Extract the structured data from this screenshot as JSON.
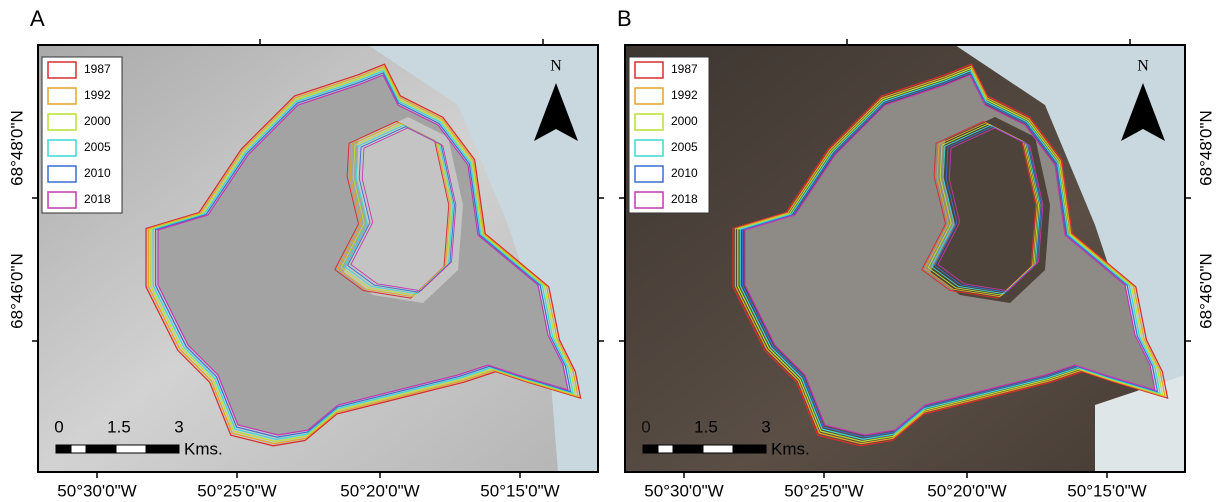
{
  "panels": [
    {
      "label": "A",
      "north": "N",
      "legend": [
        {
          "year": "1987",
          "color": "#d62f2f"
        },
        {
          "year": "1992",
          "color": "#e3a326"
        },
        {
          "year": "2000",
          "color": "#b6e034"
        },
        {
          "year": "2005",
          "color": "#3fd7d4"
        },
        {
          "year": "2010",
          "color": "#3a6fd0"
        },
        {
          "year": "2018",
          "color": "#c23aae"
        }
      ],
      "scale_labels": [
        "0",
        "1.5",
        "3"
      ],
      "scale_unit": "Kms.",
      "lon_labels": [
        "50°30'0\"W",
        "50°25'0\"W",
        "50°20'0\"W",
        "50°15'0\"W"
      ],
      "lat_labels": [
        "68°48'0\"N",
        "68°46'0\"N"
      ]
    },
    {
      "label": "B",
      "north": "N",
      "legend": [
        {
          "year": "1987",
          "color": "#d62f2f"
        },
        {
          "year": "1992",
          "color": "#e3a326"
        },
        {
          "year": "2000",
          "color": "#b6e034"
        },
        {
          "year": "2005",
          "color": "#3fd7d4"
        },
        {
          "year": "2010",
          "color": "#3a6fd0"
        },
        {
          "year": "2018",
          "color": "#c23aae"
        }
      ],
      "scale_labels": [
        "0",
        "1.5",
        "3"
      ],
      "scale_unit": "Kms.",
      "lon_labels": [
        "50°30'0\"W",
        "50°25'0\"W",
        "50°20'0\"W",
        "50°15'0\"W"
      ],
      "lat_labels": [
        "68°48'0\"N",
        "68°46'0\"N"
      ]
    }
  ]
}
